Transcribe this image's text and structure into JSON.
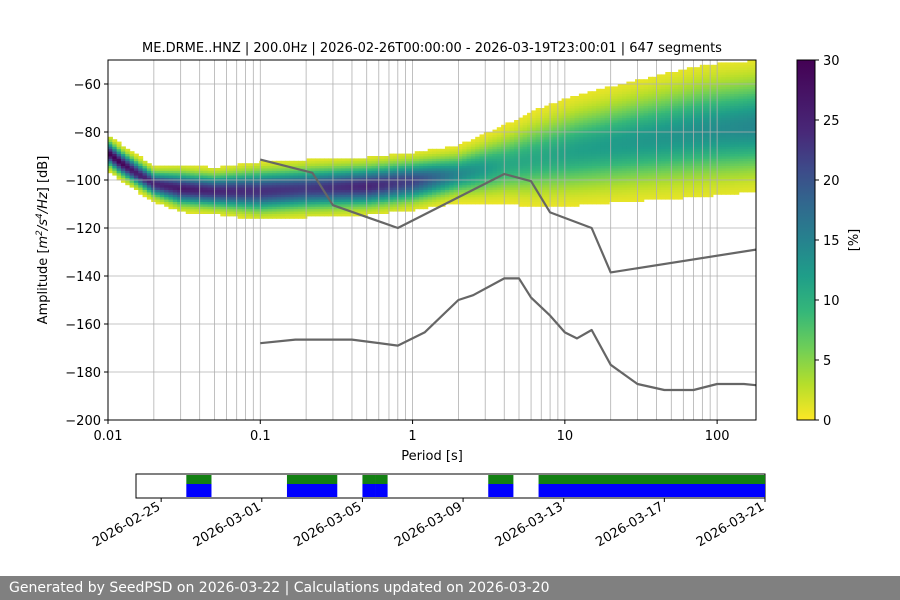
{
  "chart_data": [
    {
      "type": "heatmap",
      "title": "ME.DRME..HNZ | 200.0Hz | 2026-02-26T00:00:00 - 2026-03-19T23:00:01 | 647 segments",
      "xlabel": "Period [s]",
      "ylabel_parts": [
        "Amplitude [",
        "m",
        "2",
        "/s",
        "4",
        "/Hz",
        "] [dB]"
      ],
      "xscale": "log",
      "xlim": [
        0.01,
        180
      ],
      "ylim": [
        -200,
        -50
      ],
      "xticks": [
        {
          "v": 0.01,
          "label": "0.01"
        },
        {
          "v": 0.1,
          "label": "0.1"
        },
        {
          "v": 1,
          "label": "1"
        },
        {
          "v": 10,
          "label": "10"
        },
        {
          "v": 100,
          "label": "100"
        }
      ],
      "yticks": [
        {
          "v": -60,
          "label": "−60"
        },
        {
          "v": -80,
          "label": "−80"
        },
        {
          "v": -100,
          "label": "−100"
        },
        {
          "v": -120,
          "label": "−120"
        },
        {
          "v": -140,
          "label": "−140"
        },
        {
          "v": -160,
          "label": "−160"
        },
        {
          "v": -180,
          "label": "−180"
        },
        {
          "v": -200,
          "label": "−200"
        }
      ],
      "grid": true,
      "colorbar": {
        "label": "[%]",
        "range": [
          0,
          30
        ],
        "ticks": [
          {
            "v": 0,
            "label": "0"
          },
          {
            "v": 5,
            "label": "5"
          },
          {
            "v": 10,
            "label": "10"
          },
          {
            "v": 15,
            "label": "15"
          },
          {
            "v": 20,
            "label": "20"
          },
          {
            "v": 25,
            "label": "25"
          },
          {
            "v": 30,
            "label": "30"
          }
        ],
        "colormap": "viridis_r"
      },
      "psd_density": [
        {
          "period": 0.01,
          "center": -89,
          "width": 3,
          "peak": 30
        },
        {
          "period": 0.012,
          "center": -93,
          "width": 3,
          "peak": 30
        },
        {
          "period": 0.015,
          "center": -97,
          "width": 3,
          "peak": 28
        },
        {
          "period": 0.02,
          "center": -102,
          "width": 3,
          "peak": 27
        },
        {
          "period": 0.03,
          "center": -104,
          "width": 4,
          "peak": 28
        },
        {
          "period": 0.05,
          "center": -105,
          "width": 4,
          "peak": 27
        },
        {
          "period": 0.1,
          "center": -105,
          "width": 5,
          "peak": 26
        },
        {
          "period": 0.2,
          "center": -104,
          "width": 5,
          "peak": 25
        },
        {
          "period": 0.5,
          "center": -103,
          "width": 5,
          "peak": 27
        },
        {
          "period": 1,
          "center": -101,
          "width": 5,
          "peak": 24
        },
        {
          "period": 2,
          "center": -98,
          "width": 5,
          "peak": 16
        },
        {
          "period": 4,
          "center": -94,
          "width": 7,
          "peak": 12
        },
        {
          "period": 7,
          "center": -91,
          "width": 9,
          "peak": 12
        },
        {
          "period": 12,
          "center": -88,
          "width": 10,
          "peak": 13
        },
        {
          "period": 30,
          "center": -84,
          "width": 11,
          "peak": 14
        },
        {
          "period": 80,
          "center": -80,
          "width": 12,
          "peak": 15
        },
        {
          "period": 180,
          "center": -78,
          "width": 12,
          "peak": 16
        }
      ],
      "series": [
        {
          "x": [
            0.1,
            0.22,
            0.3,
            0.8,
            4,
            6,
            8,
            15,
            20,
            180
          ],
          "y": [
            -91.5,
            -97.0,
            -110.5,
            -120.0,
            -97.5,
            -100.5,
            -113.5,
            -120.0,
            -138.5,
            -129.0
          ]
        },
        {
          "x": [
            0.1,
            0.17,
            0.4,
            0.8,
            1.2,
            2,
            2.5,
            4,
            5,
            6,
            8,
            10,
            12,
            15,
            20,
            30,
            45,
            70,
            100,
            150,
            180
          ],
          "y": [
            -168.0,
            -166.5,
            -166.5,
            -169.0,
            -163.5,
            -150.0,
            -148.0,
            -141.0,
            -141.0,
            -149.0,
            -156.5,
            -163.5,
            -166.0,
            -162.5,
            -177.0,
            -185.0,
            -187.5,
            -187.5,
            -185.0,
            -185.0,
            -185.5
          ]
        }
      ]
    },
    {
      "type": "timeline",
      "xlim": [
        "2026-02-24",
        "2026-03-21"
      ],
      "xticks": [
        "2026-02-25",
        "2026-03-01",
        "2026-03-05",
        "2026-03-09",
        "2026-03-13",
        "2026-03-17",
        "2026-03-21"
      ],
      "colors": {
        "top": "#138013",
        "bottom": "#0000ff"
      },
      "segments": [
        {
          "start": "2026-02-26T00:00",
          "end": "2026-02-27T00:00"
        },
        {
          "start": "2026-03-02T00:00",
          "end": "2026-03-04T00:00"
        },
        {
          "start": "2026-03-05T00:00",
          "end": "2026-03-05T12:00"
        },
        {
          "start": "2026-03-05T12:00",
          "end": "2026-03-06T00:00"
        },
        {
          "start": "2026-03-10T00:00",
          "end": "2026-03-11T00:00"
        },
        {
          "start": "2026-03-12T00:00",
          "end": "2026-03-21T00:00"
        }
      ]
    }
  ],
  "footer": {
    "text": "Generated by SeedPSD on 2026-03-22 | Calculations updated on 2026-03-20"
  }
}
